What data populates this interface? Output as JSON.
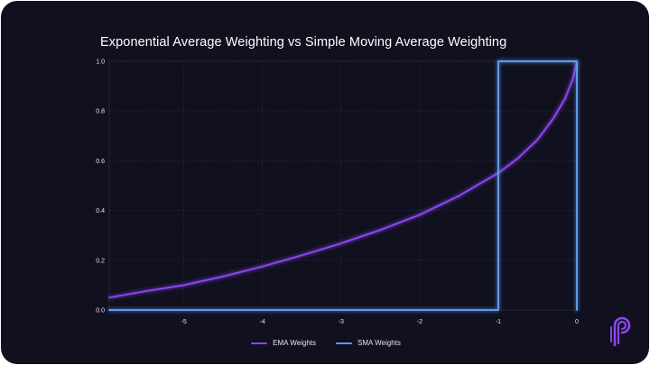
{
  "chart_data": {
    "type": "line",
    "title": "Exponential Average Weighting vs Simple Moving Average Weighting",
    "xlabel": "",
    "ylabel": "",
    "xlim": [
      -5.95,
      0
    ],
    "ylim": [
      0,
      1.0
    ],
    "x_ticks": [
      "-5",
      "-4",
      "-3",
      "-2",
      "-1",
      "0"
    ],
    "x_tick_values": [
      -5,
      -4,
      -3,
      -2,
      -1,
      0
    ],
    "y_ticks": [
      "0.0",
      "0.2",
      "0.4",
      "0.6",
      "0.8",
      "1.0"
    ],
    "y_tick_values": [
      0.0,
      0.2,
      0.4,
      0.6,
      0.8,
      1.0
    ],
    "grid": true,
    "legend_position": "bottom-center",
    "series": [
      {
        "name": "EMA Weights",
        "color": "#8b45f0",
        "x": [
          -5.95,
          -5.5,
          -5.0,
          -4.5,
          -4.0,
          -3.5,
          -3.0,
          -2.5,
          -2.0,
          -1.5,
          -1.0,
          -0.75,
          -0.5,
          -0.3,
          -0.15,
          -0.05,
          0.0
        ],
        "values": [
          0.05,
          0.075,
          0.1,
          0.135,
          0.175,
          0.22,
          0.268,
          0.322,
          0.383,
          0.459,
          0.551,
          0.61,
          0.685,
          0.77,
          0.85,
          0.93,
          1.0
        ]
      },
      {
        "name": "SMA Weights",
        "color": "#5b9bf0",
        "step": true,
        "x": [
          -5.95,
          -1.0,
          -1.0,
          0.0,
          0.0
        ],
        "values": [
          0.0,
          0.0,
          1.0,
          1.0,
          0.0
        ]
      }
    ]
  },
  "brand": {
    "logo_icon": "pi-logo-icon",
    "logo_color": "#8b45f0"
  }
}
